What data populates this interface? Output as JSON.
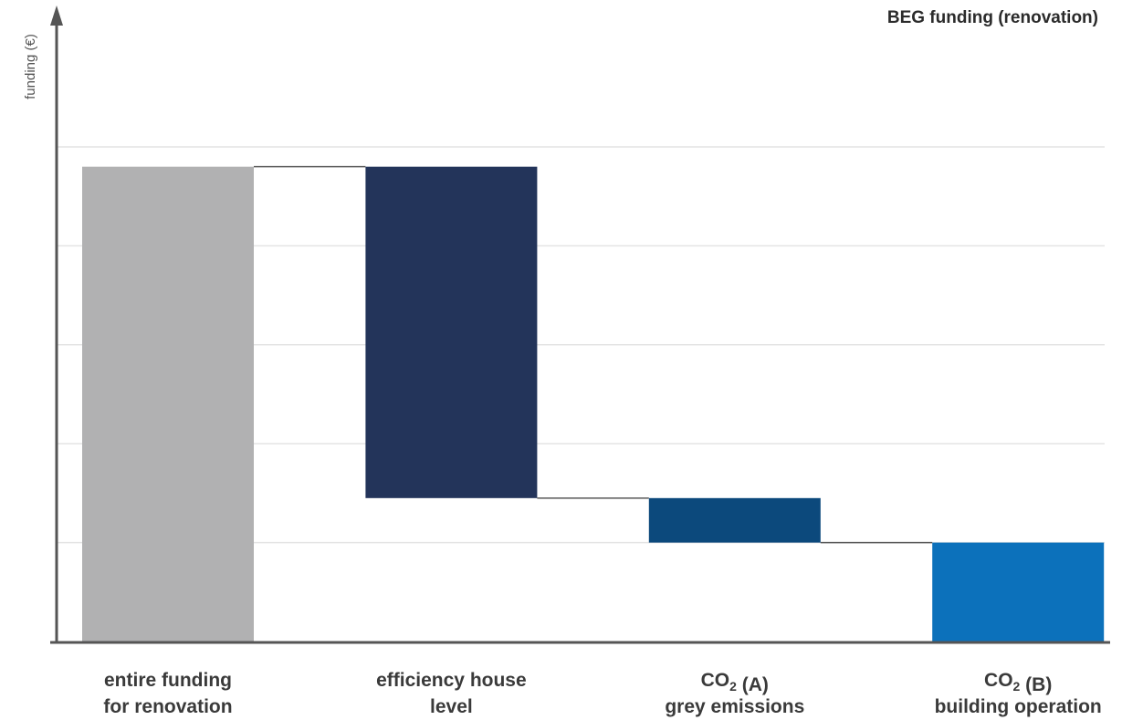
{
  "chart_data": {
    "type": "bar",
    "subtype": "waterfall",
    "title": "BEG funding (renovation)",
    "xlabel": "",
    "ylabel": "funding (€)",
    "ytick_labels": "none",
    "ylim": [
      0,
      100
    ],
    "grid": true,
    "grid_lines_y": [
      20,
      40,
      60,
      80,
      100
    ],
    "legend": "none",
    "categories": [
      {
        "lines": [
          [
            {
              "t": "entire funding"
            }
          ],
          [
            {
              "t": "for renovation"
            }
          ]
        ]
      },
      {
        "lines": [
          [
            {
              "t": "efficiency house"
            }
          ],
          [
            {
              "t": "level"
            }
          ]
        ]
      },
      {
        "lines": [
          [
            {
              "t": "CO"
            },
            {
              "t": "2",
              "sub": true
            },
            {
              "t": " (A)"
            }
          ],
          [
            {
              "t": "grey emissions"
            }
          ]
        ]
      },
      {
        "lines": [
          [
            {
              "t": "CO"
            },
            {
              "t": "2",
              "sub": true
            },
            {
              "t": " (B)"
            }
          ],
          [
            {
              "t": "building operation"
            }
          ]
        ]
      }
    ],
    "bars": [
      {
        "bottom": 0,
        "top": 96,
        "color": "#b1b1b2"
      },
      {
        "bottom": 29,
        "top": 96,
        "color": "#23345a"
      },
      {
        "bottom": 20,
        "top": 29,
        "color": "#0c497c"
      },
      {
        "bottom": 0,
        "top": 20,
        "color": "#0c71bb"
      }
    ],
    "connectors": [
      {
        "from_bar": 0,
        "to_bar": 1,
        "value": 96
      },
      {
        "from_bar": 1,
        "to_bar": 2,
        "value": 29
      },
      {
        "from_bar": 2,
        "to_bar": 3,
        "value": 20
      }
    ]
  }
}
